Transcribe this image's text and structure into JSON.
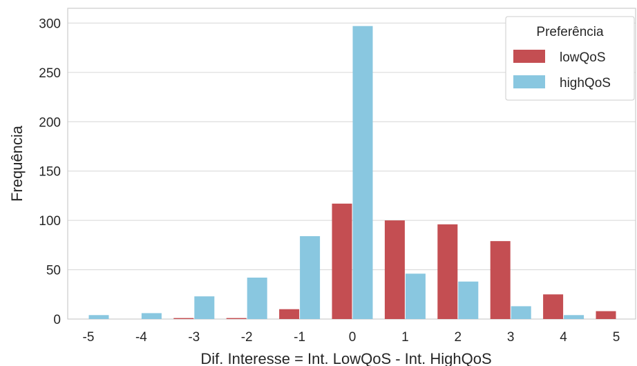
{
  "chart_data": {
    "type": "bar",
    "categories": [
      "-5",
      "-4",
      "-3",
      "-2",
      "-1",
      "0",
      "1",
      "2",
      "3",
      "4",
      "5"
    ],
    "series": [
      {
        "name": "lowQoS",
        "color": "#c44e52",
        "values": [
          0,
          0,
          1,
          1,
          10,
          117,
          100,
          96,
          79,
          25,
          8
        ]
      },
      {
        "name": "highQoS",
        "color": "#89c7e0",
        "values": [
          4,
          6,
          23,
          42,
          84,
          297,
          46,
          38,
          13,
          4,
          0
        ]
      }
    ],
    "xlabel": "Dif. Interesse = Int. LowQoS - Int. HighQoS",
    "ylabel": "Frequência",
    "ylim": [
      0,
      315
    ],
    "yticks": [
      0,
      50,
      100,
      150,
      200,
      250,
      300
    ],
    "grid": "horizontal",
    "legend": {
      "title": "Preferência",
      "placement": "top-right"
    }
  }
}
